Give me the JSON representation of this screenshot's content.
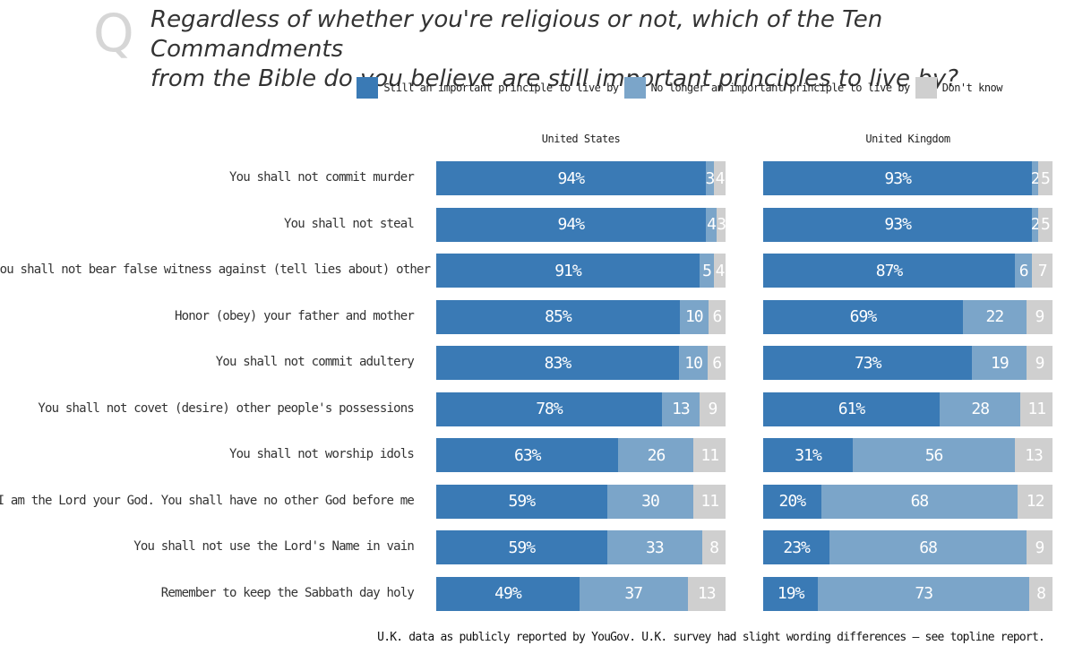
{
  "q_mark": "Q",
  "title_lines": [
    "Regardless of whether you're religious or not, which of the Ten Commandments",
    "from the Bible do you believe are still important principles to live by?"
  ],
  "colors": {
    "still": "#3a7ab5",
    "no_longer": "#7ba5c9",
    "dont_know": "#cfcfcf"
  },
  "legend": [
    {
      "key": "still",
      "label": "Still an important principle to live by"
    },
    {
      "key": "no_longer",
      "label": "No longer an important principle to live by"
    },
    {
      "key": "dont_know",
      "label": "Don't know"
    }
  ],
  "footer": "U.K. data as publicly reported by YouGov. U.K. survey had slight wording differences – see topline report.",
  "chart_data": {
    "type": "bar",
    "orientation": "horizontal",
    "stacked": true,
    "title": "Regardless of whether you're religious or not, which of the Ten Commandments from the Bible do you believe are still important principles to live by?",
    "categories": [
      "You shall not commit murder",
      "You shall not steal",
      "You shall not bear false witness against (tell lies about) other people",
      "Honor (obey) your father and mother",
      "You shall not commit adultery",
      "You shall not covet (desire) other people's possessions",
      "You shall not worship idols",
      "I am the Lord your God. You shall have no other God before me",
      "You shall not use the Lord's Name in vain",
      "Remember to keep the Sabbath day holy"
    ],
    "panels": [
      {
        "name": "United States",
        "series": [
          {
            "name": "Still an important principle to live by",
            "values": [
              94,
              94,
              91,
              85,
              83,
              78,
              63,
              59,
              59,
              49
            ]
          },
          {
            "name": "No longer an important principle to live by",
            "values": [
              3,
              4,
              5,
              10,
              10,
              13,
              26,
              30,
              33,
              37
            ]
          },
          {
            "name": "Don't know",
            "values": [
              4,
              3,
              4,
              6,
              6,
              9,
              11,
              11,
              8,
              13
            ]
          }
        ]
      },
      {
        "name": "United Kingdom",
        "series": [
          {
            "name": "Still an important principle to live by",
            "values": [
              93,
              93,
              87,
              69,
              73,
              61,
              31,
              20,
              23,
              19
            ]
          },
          {
            "name": "No longer an important principle to live by",
            "values": [
              2,
              2,
              6,
              22,
              19,
              28,
              56,
              68,
              68,
              73
            ]
          },
          {
            "name": "Don't know",
            "values": [
              5,
              5,
              7,
              9,
              9,
              11,
              13,
              12,
              9,
              8
            ]
          }
        ]
      }
    ],
    "xlim": [
      0,
      100
    ],
    "legend_position": "top-right",
    "grid": false
  }
}
